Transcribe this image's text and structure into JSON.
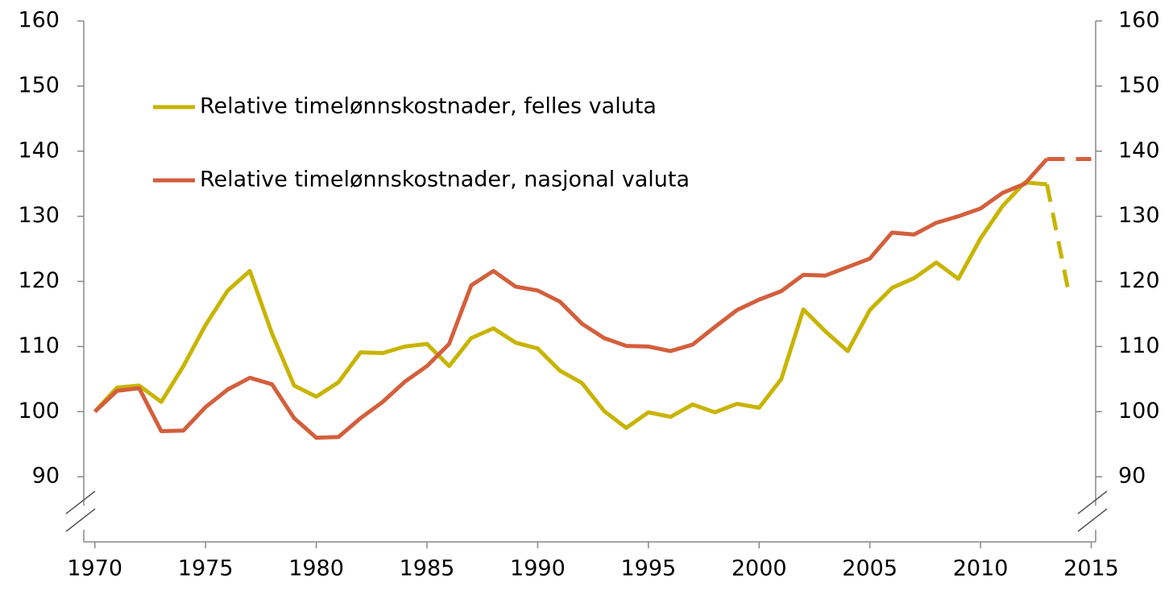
{
  "chart_data": {
    "type": "line",
    "x": [
      1970,
      1971,
      1972,
      1973,
      1974,
      1975,
      1976,
      1977,
      1978,
      1979,
      1980,
      1981,
      1982,
      1983,
      1984,
      1985,
      1986,
      1987,
      1988,
      1989,
      1990,
      1991,
      1992,
      1993,
      1994,
      1995,
      1996,
      1997,
      1998,
      1999,
      2000,
      2001,
      2002,
      2003,
      2004,
      2005,
      2006,
      2007,
      2008,
      2009,
      2010,
      2011,
      2012,
      2013,
      2014,
      2015
    ],
    "series": [
      {
        "name": "Relative timelønnskostnader, felles valuta",
        "color": "#c8b400",
        "values": [
          100,
          103.7,
          104,
          101.5,
          107,
          113.3,
          118.6,
          121.6,
          112,
          104,
          102.3,
          104.5,
          109.1,
          109,
          110,
          110.4,
          107,
          111.3,
          112.8,
          110.6,
          109.7,
          106.3,
          104.4,
          100.1,
          97.5,
          99.9,
          99.2,
          101.1,
          99.9,
          101.2,
          100.6,
          105,
          115.7,
          112.3,
          109.3,
          115.6,
          119,
          120.5,
          122.9,
          120.4,
          126.6,
          131.6,
          135.2,
          134.9,
          118,
          null
        ]
      },
      {
        "name": "Relative timelønnskostnader, nasjonal valuta",
        "color": "#d35f3c",
        "values": [
          100,
          103.2,
          103.6,
          97,
          97.1,
          100.7,
          103.4,
          105.2,
          104.2,
          99,
          96,
          96.1,
          99,
          101.5,
          104.6,
          107,
          110.4,
          119.4,
          121.6,
          119.2,
          118.6,
          116.9,
          113.5,
          111.3,
          110.1,
          110,
          109.3,
          110.3,
          113,
          115.6,
          117.2,
          118.5,
          121,
          120.9,
          122.2,
          123.5,
          127.5,
          127.2,
          129,
          130,
          131.2,
          133.6,
          135,
          138.8,
          138.8,
          138.8
        ]
      }
    ],
    "dashed_from": 2013,
    "xlim": [
      1969.5,
      2015.2
    ],
    "xticks": [
      1970,
      1975,
      1980,
      1985,
      1990,
      1995,
      2000,
      2005,
      2010,
      2015
    ],
    "ylim": [
      80,
      160
    ],
    "yticks": [
      90,
      100,
      110,
      120,
      130,
      140,
      150,
      160
    ],
    "y2lim": [
      80,
      160
    ],
    "y2ticks": [
      90,
      100,
      110,
      120,
      130,
      140,
      150,
      160
    ]
  }
}
